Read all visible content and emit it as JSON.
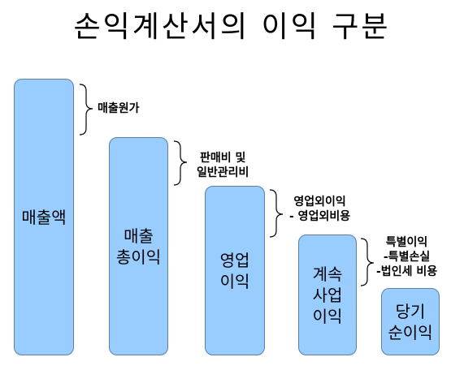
{
  "title": "손익계산서의 이익 구분",
  "bars": [
    {
      "label": "매출액"
    },
    {
      "label": "매출\n총이익"
    },
    {
      "label": "영업\n이익"
    },
    {
      "label": "계속\n사업\n이익"
    },
    {
      "label": "당기\n순이익"
    }
  ],
  "notes": [
    {
      "text": "매출원가"
    },
    {
      "text": "판매비 및\n일반관리비"
    },
    {
      "text": "영업외이익\n- 영업외비용"
    },
    {
      "text": "특별이익\n-특별손실\n-법인세 비용"
    }
  ],
  "colors": {
    "bar_fill": "#99ccff",
    "bar_border": "#5b7fa6"
  }
}
